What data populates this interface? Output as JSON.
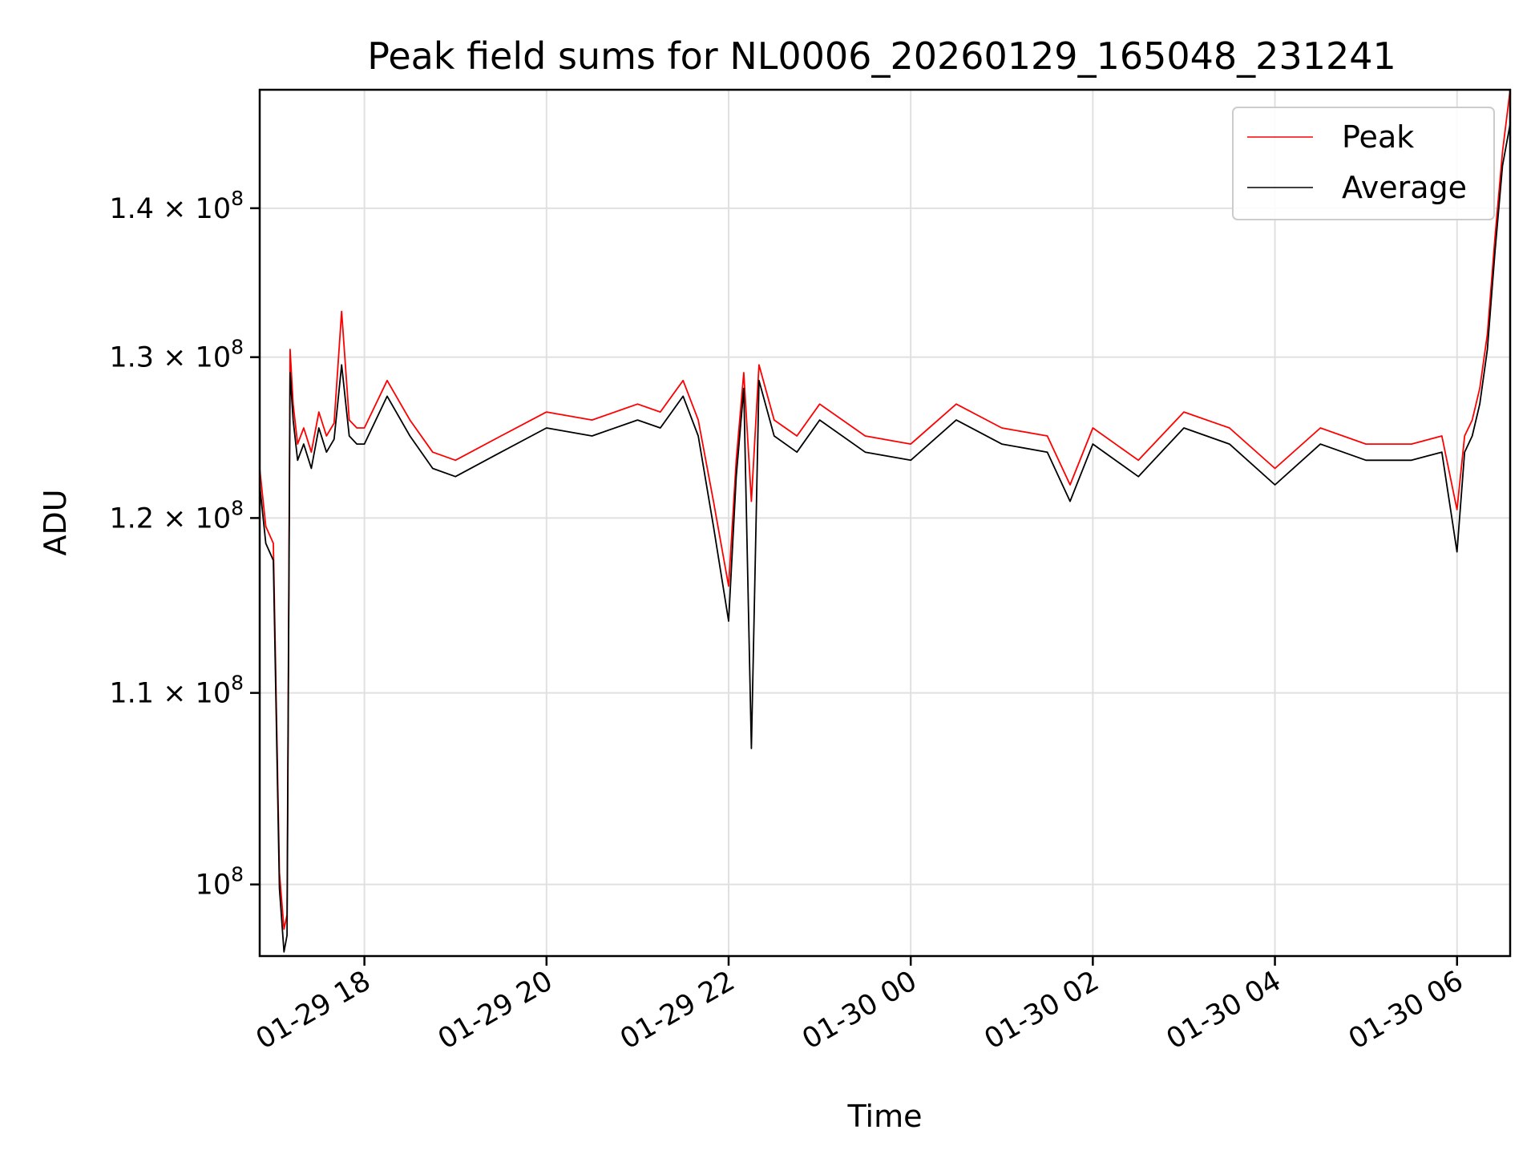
{
  "chart_data": {
    "type": "line",
    "title": "Peak field sums for NL0006_20260129_165048_231241",
    "xlabel": "Time",
    "ylabel": "ADU",
    "yscale": "log",
    "grid": true,
    "legend_position": "top-right",
    "xlim": [
      "2026-01-29 16:51",
      "2026-01-30 06:35"
    ],
    "ylim": [
      96500000,
      148500000
    ],
    "xticks": [
      {
        "value": "2026-01-29 18:00",
        "label": "01-29 18"
      },
      {
        "value": "2026-01-29 20:00",
        "label": "01-29 20"
      },
      {
        "value": "2026-01-29 22:00",
        "label": "01-29 22"
      },
      {
        "value": "2026-01-30 00:00",
        "label": "01-30 00"
      },
      {
        "value": "2026-01-30 02:00",
        "label": "01-30 02"
      },
      {
        "value": "2026-01-30 04:00",
        "label": "01-30 04"
      },
      {
        "value": "2026-01-30 06:00",
        "label": "01-30 06"
      }
    ],
    "yticks": [
      {
        "value": 100000000,
        "mantissa": "",
        "exponent": "8"
      },
      {
        "value": 110000000,
        "mantissa": "1.1",
        "exponent": "8"
      },
      {
        "value": 120000000,
        "mantissa": "1.2",
        "exponent": "8"
      },
      {
        "value": 130000000,
        "mantissa": "1.3",
        "exponent": "8"
      },
      {
        "value": 140000000,
        "mantissa": "1.4",
        "exponent": "8"
      }
    ],
    "series": [
      {
        "name": "Peak",
        "color": "#ff0000",
        "x": [
          "2026-01-29 16:51",
          "2026-01-29 16:55",
          "2026-01-29 17:00",
          "2026-01-29 17:04",
          "2026-01-29 17:07",
          "2026-01-29 17:09",
          "2026-01-29 17:11",
          "2026-01-29 17:13",
          "2026-01-29 17:16",
          "2026-01-29 17:20",
          "2026-01-29 17:25",
          "2026-01-29 17:30",
          "2026-01-29 17:35",
          "2026-01-29 17:40",
          "2026-01-29 17:45",
          "2026-01-29 17:50",
          "2026-01-29 17:55",
          "2026-01-29 18:00",
          "2026-01-29 18:15",
          "2026-01-29 18:30",
          "2026-01-29 18:45",
          "2026-01-29 19:00",
          "2026-01-29 19:30",
          "2026-01-29 20:00",
          "2026-01-29 20:30",
          "2026-01-29 21:00",
          "2026-01-29 21:15",
          "2026-01-29 21:30",
          "2026-01-29 21:40",
          "2026-01-29 21:50",
          "2026-01-29 22:00",
          "2026-01-29 22:05",
          "2026-01-29 22:10",
          "2026-01-29 22:15",
          "2026-01-29 22:20",
          "2026-01-29 22:30",
          "2026-01-29 22:45",
          "2026-01-29 23:00",
          "2026-01-29 23:30",
          "2026-01-30 00:00",
          "2026-01-30 00:30",
          "2026-01-30 01:00",
          "2026-01-30 01:30",
          "2026-01-30 01:45",
          "2026-01-30 02:00",
          "2026-01-30 02:30",
          "2026-01-30 03:00",
          "2026-01-30 03:30",
          "2026-01-30 04:00",
          "2026-01-30 04:30",
          "2026-01-30 05:00",
          "2026-01-30 05:30",
          "2026-01-30 05:50",
          "2026-01-30 06:00",
          "2026-01-30 06:05",
          "2026-01-30 06:10",
          "2026-01-30 06:15",
          "2026-01-30 06:20",
          "2026-01-30 06:25",
          "2026-01-30 06:30",
          "2026-01-30 06:35"
        ],
        "y": [
          123000000,
          119500000,
          118500000,
          100600000,
          97800000,
          98500000,
          130500000,
          127000000,
          124500000,
          125500000,
          124000000,
          126500000,
          125000000,
          125800000,
          133000000,
          126000000,
          125500000,
          125500000,
          128500000,
          126000000,
          124000000,
          123500000,
          125000000,
          126500000,
          126000000,
          127000000,
          126500000,
          128500000,
          126000000,
          121000000,
          116000000,
          123500000,
          129000000,
          121000000,
          129500000,
          126000000,
          125000000,
          127000000,
          125000000,
          124500000,
          127000000,
          125500000,
          125000000,
          122000000,
          125500000,
          123500000,
          126500000,
          125500000,
          123000000,
          125500000,
          124500000,
          124500000,
          125000000,
          120500000,
          125000000,
          126000000,
          128000000,
          131500000,
          138000000,
          144000000,
          148500000
        ]
      },
      {
        "name": "Average",
        "color": "#000000",
        "x": [
          "2026-01-29 16:51",
          "2026-01-29 16:55",
          "2026-01-29 17:00",
          "2026-01-29 17:04",
          "2026-01-29 17:07",
          "2026-01-29 17:09",
          "2026-01-29 17:11",
          "2026-01-29 17:13",
          "2026-01-29 17:16",
          "2026-01-29 17:20",
          "2026-01-29 17:25",
          "2026-01-29 17:30",
          "2026-01-29 17:35",
          "2026-01-29 17:40",
          "2026-01-29 17:45",
          "2026-01-29 17:50",
          "2026-01-29 17:55",
          "2026-01-29 18:00",
          "2026-01-29 18:15",
          "2026-01-29 18:30",
          "2026-01-29 18:45",
          "2026-01-29 19:00",
          "2026-01-29 19:30",
          "2026-01-29 20:00",
          "2026-01-29 20:30",
          "2026-01-29 21:00",
          "2026-01-29 21:15",
          "2026-01-29 21:30",
          "2026-01-29 21:40",
          "2026-01-29 21:50",
          "2026-01-29 22:00",
          "2026-01-29 22:05",
          "2026-01-29 22:10",
          "2026-01-29 22:15",
          "2026-01-29 22:20",
          "2026-01-29 22:30",
          "2026-01-29 22:45",
          "2026-01-29 23:00",
          "2026-01-29 23:30",
          "2026-01-30 00:00",
          "2026-01-30 00:30",
          "2026-01-30 01:00",
          "2026-01-30 01:30",
          "2026-01-30 01:45",
          "2026-01-30 02:00",
          "2026-01-30 02:30",
          "2026-01-30 03:00",
          "2026-01-30 03:30",
          "2026-01-30 04:00",
          "2026-01-30 04:30",
          "2026-01-30 05:00",
          "2026-01-30 05:30",
          "2026-01-30 05:50",
          "2026-01-30 06:00",
          "2026-01-30 06:05",
          "2026-01-30 06:10",
          "2026-01-30 06:15",
          "2026-01-30 06:20",
          "2026-01-30 06:25",
          "2026-01-30 06:30",
          "2026-01-30 06:35"
        ],
        "y": [
          122000000,
          118500000,
          117500000,
          99800000,
          96700000,
          97500000,
          129000000,
          126000000,
          123500000,
          124500000,
          123000000,
          125500000,
          124000000,
          124800000,
          129500000,
          125000000,
          124500000,
          124500000,
          127500000,
          125000000,
          123000000,
          122500000,
          124000000,
          125500000,
          125000000,
          126000000,
          125500000,
          127500000,
          125000000,
          119500000,
          114000000,
          122500000,
          128000000,
          107000000,
          128500000,
          125000000,
          124000000,
          126000000,
          124000000,
          123500000,
          126000000,
          124500000,
          124000000,
          121000000,
          124500000,
          122500000,
          125500000,
          124500000,
          122000000,
          124500000,
          123500000,
          123500000,
          124000000,
          118000000,
          124000000,
          125000000,
          127000000,
          130500000,
          137000000,
          143000000,
          146000000
        ]
      }
    ]
  }
}
